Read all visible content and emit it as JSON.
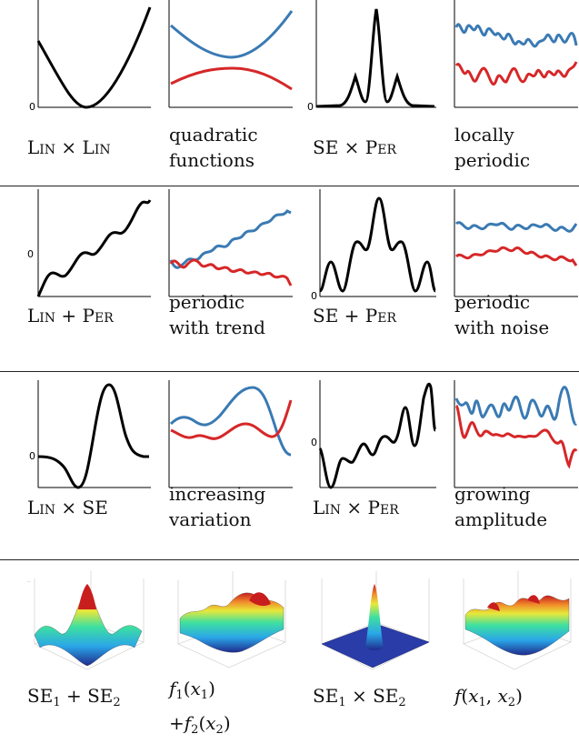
{
  "zero_label": "0",
  "colors": {
    "black": "#000000",
    "blue": "#3a7ab3",
    "red": "#d62728"
  },
  "rows": [
    {
      "cells": [
        {
          "id": "lin-x-lin",
          "label": [
            "Lin × Lin"
          ],
          "plot": "quad-black"
        },
        {
          "id": "quadratic-functions",
          "label": [
            "quadratic",
            "functions"
          ],
          "plot": "quad-samples"
        },
        {
          "id": "se-x-per",
          "label": [
            "SE × Per"
          ],
          "plot": "se-per-black"
        },
        {
          "id": "locally-periodic",
          "label": [
            "locally",
            "periodic"
          ],
          "plot": "locally-periodic-samples"
        }
      ]
    },
    {
      "cells": [
        {
          "id": "lin-plus-per",
          "label": [
            "Lin + Per"
          ],
          "plot": "lin-per-black"
        },
        {
          "id": "periodic-with-trend",
          "label": [
            "periodic",
            "with trend"
          ],
          "plot": "trend-samples"
        },
        {
          "id": "se-plus-per",
          "label": [
            "SE + Per"
          ],
          "plot": "se-plus-per-black"
        },
        {
          "id": "periodic-with-noise",
          "label": [
            "periodic",
            "with noise"
          ],
          "plot": "noise-samples"
        }
      ]
    },
    {
      "cells": [
        {
          "id": "lin-x-se",
          "label": [
            "Lin × SE"
          ],
          "plot": "lin-se-black"
        },
        {
          "id": "increasing-variation",
          "label": [
            "increasing",
            "variation"
          ],
          "plot": "variation-samples"
        },
        {
          "id": "lin-x-per",
          "label": [
            "Lin × Per"
          ],
          "plot": "lin-x-per-black"
        },
        {
          "id": "growing-amplitude",
          "label": [
            "growing",
            "amplitude"
          ],
          "plot": "amplitude-samples"
        }
      ]
    },
    {
      "cells": [
        {
          "id": "se1-plus-se2",
          "label": [
            "SE1 + SE2"
          ],
          "plot": "surf-additive"
        },
        {
          "id": "f1-plus-f2",
          "label": [
            "f1(x1)",
            "+f2(x2)"
          ],
          "plot": "surf-sample-add"
        },
        {
          "id": "se1-x-se2",
          "label": [
            "SE1 × SE2"
          ],
          "plot": "surf-product"
        },
        {
          "id": "f-x1-x2",
          "label": [
            "f(x1, x2)"
          ],
          "plot": "surf-sample-full"
        }
      ]
    }
  ]
}
